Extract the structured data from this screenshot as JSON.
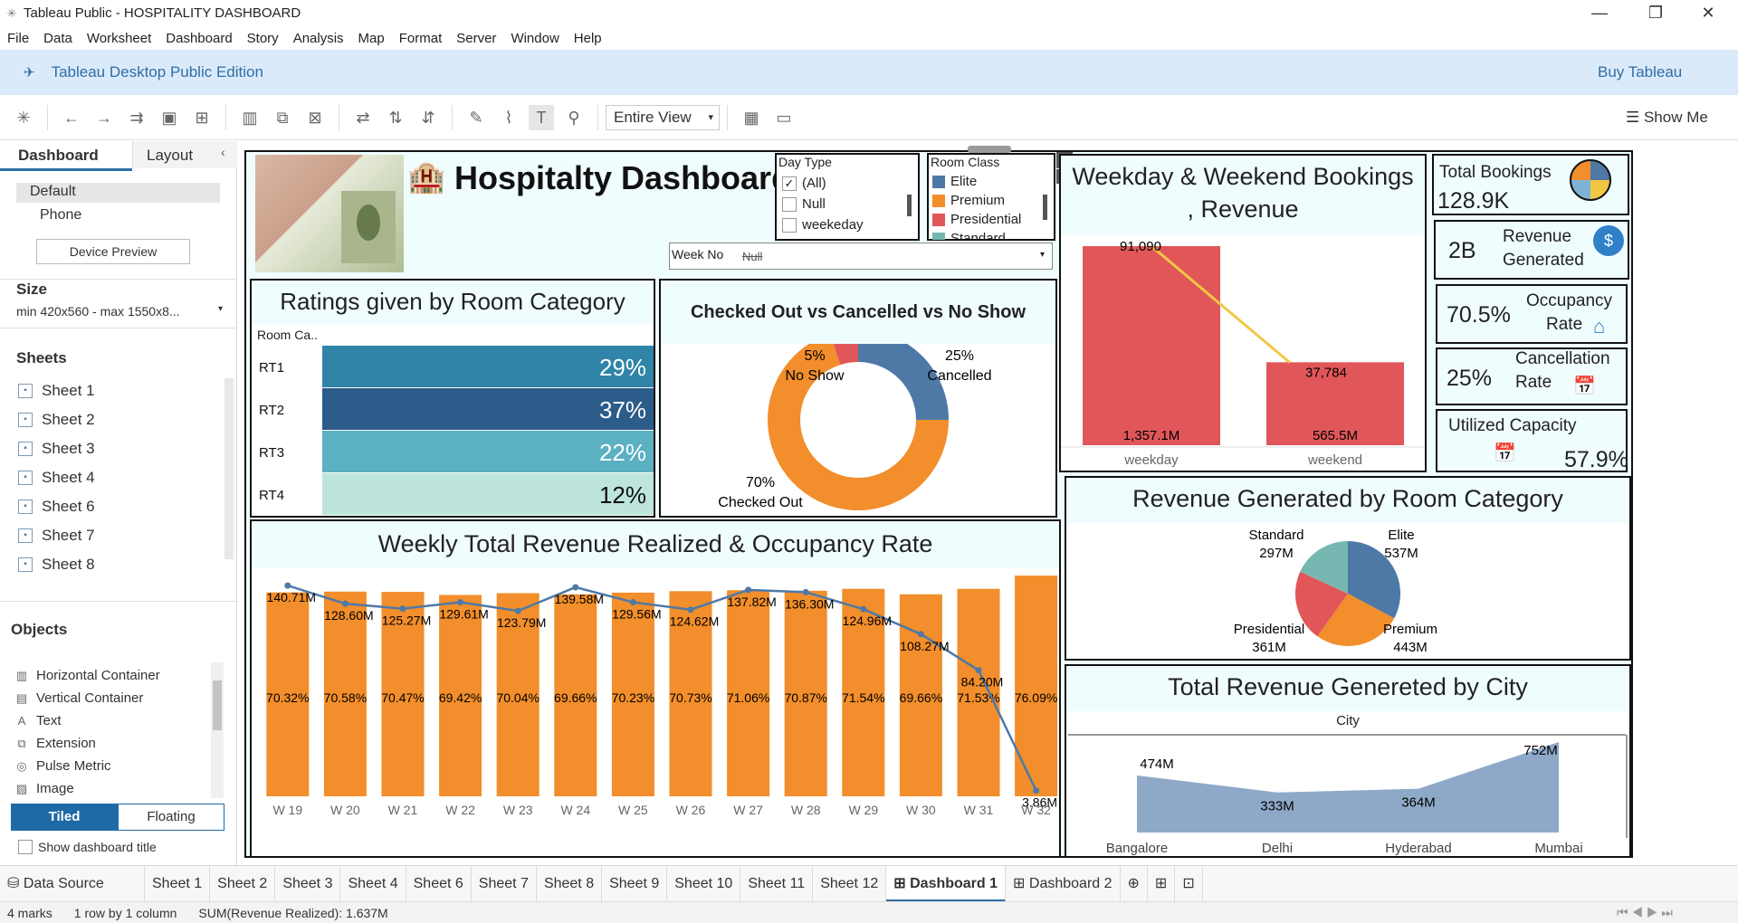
{
  "window": {
    "title": "Tableau Public - HOSPITALITY DASHBOARD",
    "minimize": "—",
    "restore": "❐",
    "close": "✕"
  },
  "menu": [
    "File",
    "Data",
    "Worksheet",
    "Dashboard",
    "Story",
    "Analysis",
    "Map",
    "Format",
    "Server",
    "Window",
    "Help"
  ],
  "banner": {
    "edition": "Tableau Desktop Public Edition",
    "buy": "Buy Tableau"
  },
  "toolbar": {
    "view": "Entire View",
    "show_me": "Show Me"
  },
  "left_panel": {
    "tab_dashboard": "Dashboard",
    "tab_layout": "Layout",
    "devices": [
      "Default",
      "Phone"
    ],
    "device_preview": "Device Preview",
    "size_title": "Size",
    "size_value": "min 420x560 - max 1550x8...",
    "sheets_title": "Sheets",
    "sheets": [
      "Sheet 1",
      "Sheet 2",
      "Sheet 3",
      "Sheet 4",
      "Sheet 6",
      "Sheet 7",
      "Sheet 8"
    ],
    "objects_title": "Objects",
    "objects": [
      "Horizontal Container",
      "Vertical Container",
      "Text",
      "Extension",
      "Pulse Metric",
      "Image"
    ],
    "tiled": "Tiled",
    "floating": "Floating",
    "show_title": "Show dashboard title"
  },
  "dashboard": {
    "title": "Hospitalty Dashboard",
    "filters": {
      "day_type": {
        "title": "Day Type",
        "items": [
          "(All)",
          "Null",
          "weekeday"
        ],
        "checked": [
          true,
          false,
          false
        ]
      },
      "room_class": {
        "title": "Room Class",
        "items": [
          "Elite",
          "Premium",
          "Presidential",
          "Standard"
        ],
        "colors": [
          "#4e79a7",
          "#f28e2b",
          "#e15759",
          "#76b7b2"
        ]
      },
      "week_no": {
        "title": "Week No",
        "value": "Null"
      }
    },
    "ratings": {
      "title": "Ratings given by Room Category",
      "header": "Room Ca..",
      "rows": [
        {
          "label": "RT1",
          "value": "29%",
          "color": "#2f84a8"
        },
        {
          "label": "RT2",
          "value": "37%",
          "color": "#2c5c8a"
        },
        {
          "label": "RT3",
          "value": "22%",
          "color": "#5bb0c1"
        },
        {
          "label": "RT4",
          "value": "12%",
          "color": "#bde5dc"
        }
      ]
    },
    "status": {
      "title": "Checked Out vs Cancelled vs No Show",
      "slices": [
        {
          "pct": "25%",
          "label": "Cancelled",
          "value": 25,
          "color": "#4e79a7"
        },
        {
          "pct": "70%",
          "label": "Checked Out",
          "value": 70,
          "color": "#f28e2b"
        },
        {
          "pct": "5%",
          "label": "No Show",
          "value": 5,
          "color": "#e15759"
        }
      ]
    },
    "weekday": {
      "title_line1": "Weekday & Weekend Bookings",
      "title_line2": ", Revenue",
      "categories": [
        "weekday",
        "weekend"
      ],
      "revenue_labels": [
        "1,357.1M",
        "565.5M"
      ],
      "revenue": [
        1357.1,
        565.5
      ],
      "booking_labels": [
        "91,090",
        "37,784"
      ],
      "bookings": [
        91090,
        37784
      ]
    },
    "kpis": {
      "total_bookings": {
        "label": "Total Bookings",
        "value": "128.9K"
      },
      "revenue": {
        "label_line1": "Revenue",
        "label_line2": "Generated",
        "value": "2B"
      },
      "occupancy": {
        "label_line1": "Occupancy",
        "label_line2": "Rate",
        "value": "70.5%"
      },
      "cancellation": {
        "label_line1": "Cancellation",
        "label_line2": "Rate",
        "value": "25%"
      },
      "utilized": {
        "label": "Utilized Capacity",
        "value": "57.9%"
      }
    },
    "weekly": {
      "title": "Weekly Total Revenue Realized & Occupancy Rate",
      "weeks": [
        "W 19",
        "W 20",
        "W 21",
        "W 22",
        "W 23",
        "W 24",
        "W 25",
        "W 26",
        "W 27",
        "W 28",
        "W 29",
        "W 30",
        "W 31",
        "W 32"
      ],
      "occupancy_labels": [
        "70.32%",
        "70.58%",
        "70.47%",
        "69.42%",
        "70.04%",
        "69.66%",
        "70.23%",
        "70.73%",
        "71.06%",
        "70.87%",
        "71.54%",
        "69.66%",
        "71.53%",
        "76.09%"
      ],
      "occupancy": [
        70.32,
        70.58,
        70.47,
        69.42,
        70.04,
        69.66,
        70.23,
        70.73,
        71.06,
        70.87,
        71.54,
        69.66,
        71.53,
        76.09
      ],
      "revenue_labels": [
        "140.71M",
        "128.60M",
        "125.27M",
        "129.61M",
        "123.79M",
        "139.58M",
        "129.56M",
        "124.62M",
        "137.82M",
        "136.30M",
        "124.96M",
        "108.27M",
        "84.20M",
        "3.86M"
      ],
      "revenue": [
        140.71,
        128.6,
        125.27,
        129.61,
        123.79,
        139.58,
        129.56,
        124.62,
        137.82,
        136.3,
        124.96,
        108.27,
        84.2,
        3.86
      ]
    },
    "room_revenue": {
      "title": "Revenue Generated by Room Category",
      "slices": [
        {
          "label": "Elite",
          "value_label": "537M",
          "value": 537,
          "color": "#4e79a7"
        },
        {
          "label": "Premium",
          "value_label": "443M",
          "value": 443,
          "color": "#f28e2b"
        },
        {
          "label": "Presidential",
          "value_label": "361M",
          "value": 361,
          "color": "#e15759"
        },
        {
          "label": "Standard",
          "value_label": "297M",
          "value": 297,
          "color": "#76b7b2"
        }
      ]
    },
    "city": {
      "title": "Total Revenue Genereted by City",
      "header": "City",
      "cities": [
        "Bangalore",
        "Delhi",
        "Hyderabad",
        "Mumbai"
      ],
      "value_labels": [
        "474M",
        "333M",
        "364M",
        "752M"
      ],
      "values": [
        474,
        333,
        364,
        752
      ]
    }
  },
  "tabs": [
    "Data Source",
    "Sheet 1",
    "Sheet 2",
    "Sheet 3",
    "Sheet 4",
    "Sheet 6",
    "Sheet 7",
    "Sheet 8",
    "Sheet 9",
    "Sheet 10",
    "Sheet 11",
    "Sheet 12",
    "Dashboard 1",
    "Dashboard 2"
  ],
  "active_tab": "Dashboard 1",
  "status": {
    "marks": "4 marks",
    "rows": "1 row by 1 column",
    "sum": "SUM(Revenue Realized): 1.637M"
  },
  "chart_data": [
    {
      "type": "bar",
      "title": "Ratings given by Room Category",
      "categories": [
        "RT1",
        "RT2",
        "RT3",
        "RT4"
      ],
      "values": [
        29,
        37,
        22,
        12
      ]
    },
    {
      "type": "pie",
      "title": "Checked Out vs Cancelled vs No Show",
      "categories": [
        "Cancelled",
        "Checked Out",
        "No Show"
      ],
      "values": [
        25,
        70,
        5
      ]
    },
    {
      "type": "bar",
      "title": "Weekday & Weekend Bookings , Revenue",
      "categories": [
        "weekday",
        "weekend"
      ],
      "series": [
        {
          "values": [
            1357.1,
            565.5
          ]
        },
        {
          "values": [
            91090,
            37784
          ]
        }
      ]
    },
    {
      "type": "bar",
      "title": "Weekly Total Revenue Realized & Occupancy Rate",
      "categories": [
        "W 19",
        "W 20",
        "W 21",
        "W 22",
        "W 23",
        "W 24",
        "W 25",
        "W 26",
        "W 27",
        "W 28",
        "W 29",
        "W 30",
        "W 31",
        "W 32"
      ],
      "series": [
        {
          "values": [
            70.32,
            70.58,
            70.47,
            69.42,
            70.04,
            69.66,
            70.23,
            70.73,
            71.06,
            70.87,
            71.54,
            69.66,
            71.53,
            76.09
          ]
        },
        {
          "values": [
            140.71,
            128.6,
            125.27,
            129.61,
            123.79,
            139.58,
            129.56,
            124.62,
            137.82,
            136.3,
            124.96,
            108.27,
            84.2,
            3.86
          ]
        }
      ]
    },
    {
      "type": "pie",
      "title": "Revenue Generated by Room Category",
      "categories": [
        "Elite",
        "Premium",
        "Presidential",
        "Standard"
      ],
      "values": [
        537,
        443,
        361,
        297
      ]
    },
    {
      "type": "area",
      "title": "Total Revenue Genereted by City",
      "categories": [
        "Bangalore",
        "Delhi",
        "Hyderabad",
        "Mumbai"
      ],
      "values": [
        474,
        333,
        364,
        752
      ]
    }
  ]
}
